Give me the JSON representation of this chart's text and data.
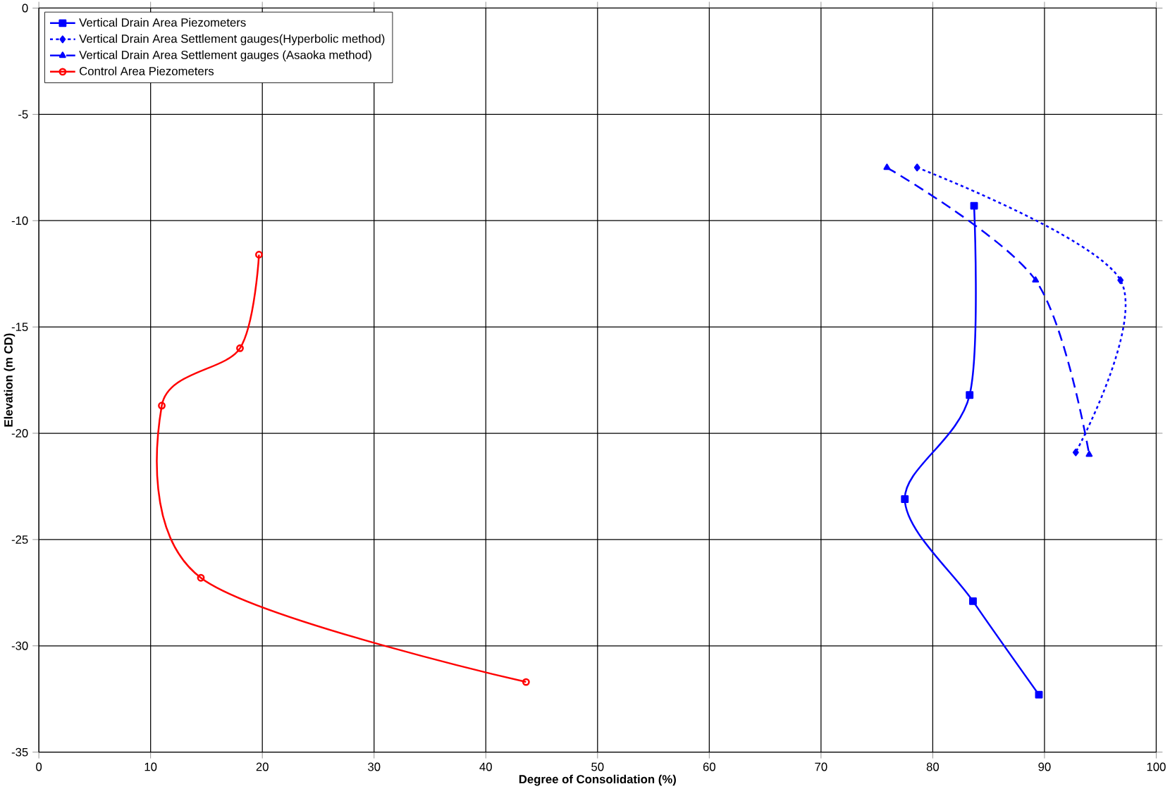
{
  "chart_data": {
    "type": "line",
    "xlabel": "Degree of Consolidation (%)",
    "ylabel": "Elevation (m CD)",
    "xlim": [
      0,
      100
    ],
    "ylim": [
      -35,
      0
    ],
    "xticks": [
      0,
      10,
      20,
      30,
      40,
      50,
      60,
      70,
      80,
      90,
      100
    ],
    "yticks": [
      -35,
      -30,
      -25,
      -20,
      -15,
      -10,
      -5,
      0
    ],
    "grid": true,
    "legend": "top left",
    "series": [
      {
        "name": "Vertical Drain Area Piezometers",
        "color": "#0000ff",
        "marker": "square",
        "line_style": "solid",
        "x": [
          83.7,
          83.3,
          77.5,
          83.6,
          89.5
        ],
        "values": [
          -9.3,
          -18.2,
          -23.1,
          -27.9,
          -32.3
        ]
      },
      {
        "name": "Vertical Drain Area Settlement gauges(Hyperbolic method)",
        "color": "#0000ff",
        "marker": "diamond",
        "line_style": "dotted",
        "x": [
          78.6,
          96.8,
          92.8
        ],
        "values": [
          -7.5,
          -12.8,
          -20.9
        ]
      },
      {
        "name": "Vertical Drain Area Settlement gauges (Asaoka method)",
        "color": "#0000ff",
        "marker": "triangle",
        "line_style": "dashed",
        "x": [
          75.9,
          89.2,
          94.0
        ],
        "values": [
          -7.5,
          -12.8,
          -21.0
        ]
      },
      {
        "name": "Control Area Piezometers",
        "color": "#ff0000",
        "marker": "circle",
        "line_style": "solid",
        "x": [
          19.7,
          18.0,
          11.0,
          14.5,
          43.6
        ],
        "values": [
          -11.6,
          -16.0,
          -18.7,
          -26.8,
          -31.7
        ]
      }
    ]
  }
}
